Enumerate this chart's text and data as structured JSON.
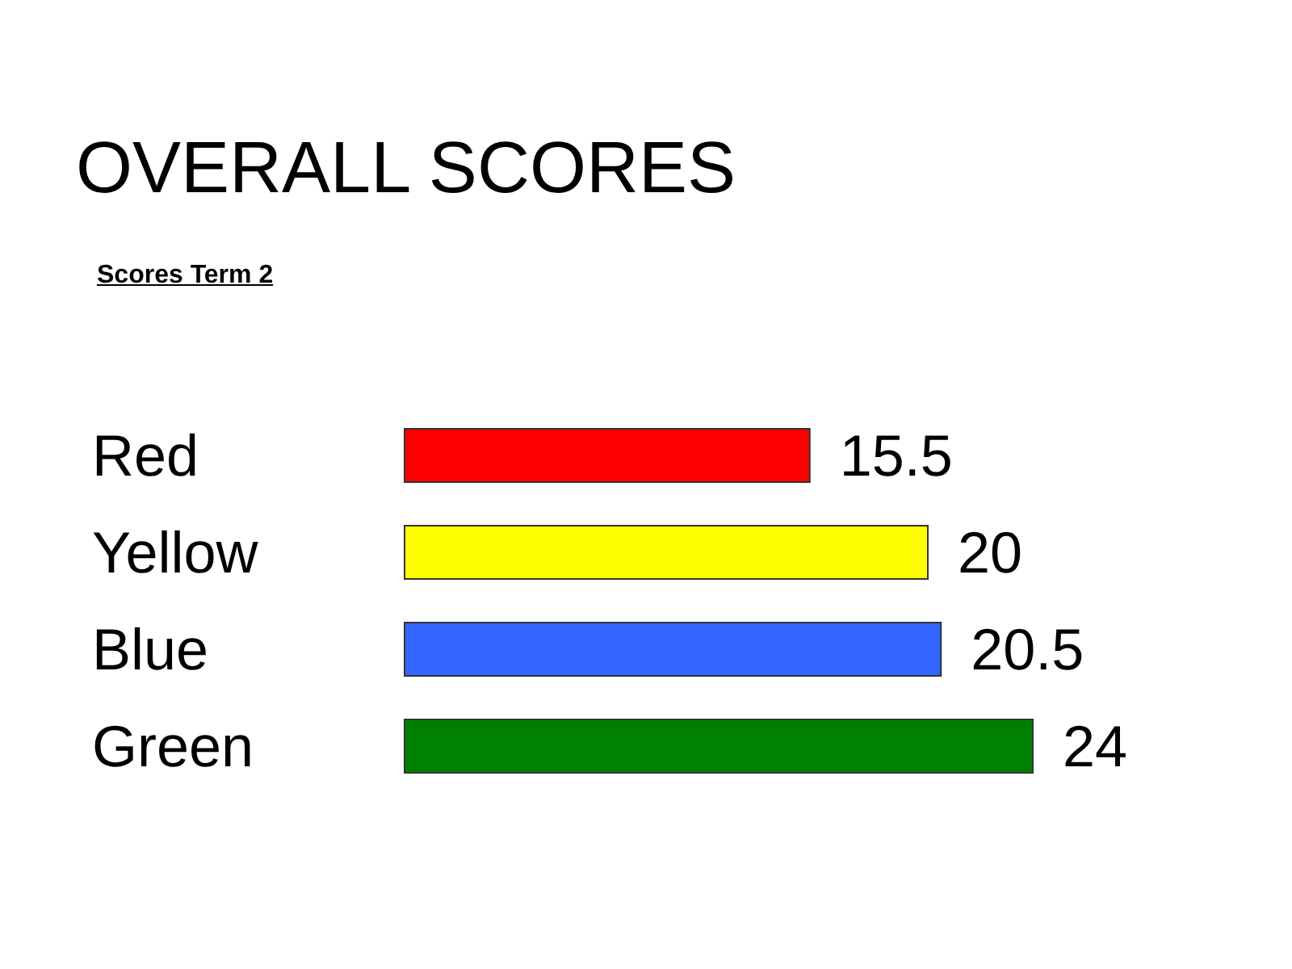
{
  "chart_data": {
    "type": "bar",
    "orientation": "horizontal",
    "title": "OVERALL SCORES",
    "subtitle": "Scores Term 2",
    "categories": [
      "Red",
      "Yellow",
      "Blue",
      "Green"
    ],
    "values": [
      15.5,
      20,
      20.5,
      24
    ],
    "colors": [
      "#ff0000",
      "#ffff00",
      "#3366ff",
      "#008000"
    ],
    "data_labels": true
  }
}
